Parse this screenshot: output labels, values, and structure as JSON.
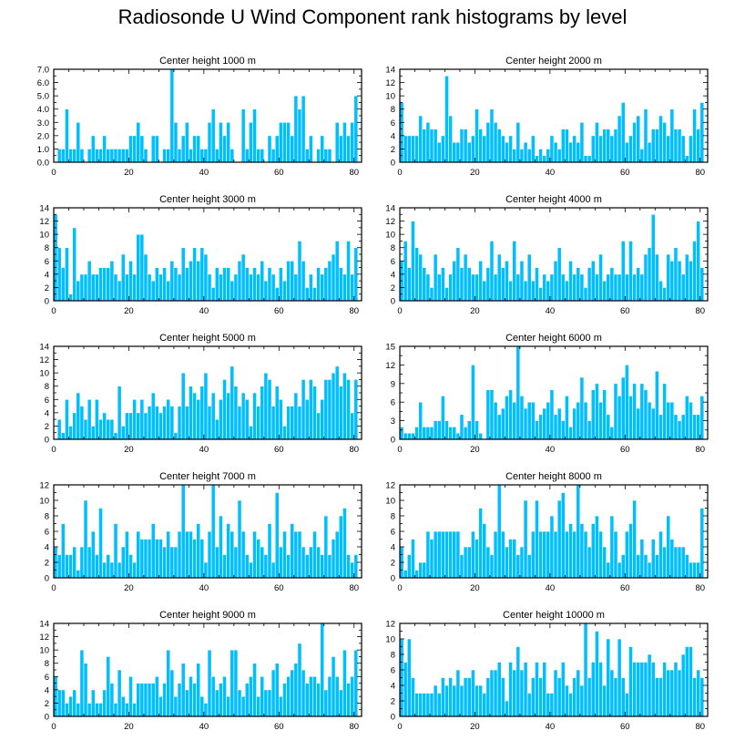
{
  "figure_title": "Radiosonde U Wind Component rank histograms by level",
  "colors": {
    "bar": "#00BFFF",
    "bar_edge": "#ffffff",
    "axis": "#000000"
  },
  "chart_data": [
    {
      "type": "bar",
      "title": "Center height 1000 m",
      "ylim": [
        0,
        7
      ],
      "yticks": [
        0,
        1,
        2,
        3,
        4,
        5,
        6,
        7
      ],
      "ytick_labels": [
        "0.0",
        "1.0",
        "2.0",
        "3.0",
        "4.0",
        "5.0",
        "6.0",
        "7.0"
      ],
      "xticks": [
        0,
        20,
        40,
        60,
        80
      ],
      "xtick_labels": [
        "0",
        "20",
        "40",
        "60",
        "80"
      ],
      "values": [
        0,
        1,
        1,
        4,
        1,
        1,
        3,
        1,
        0,
        1,
        2,
        1,
        1,
        2,
        1,
        1,
        1,
        1,
        1,
        1,
        2,
        2,
        3,
        2,
        1,
        0,
        2,
        2,
        0,
        1,
        1,
        7,
        3,
        1,
        2,
        3,
        1,
        2,
        2,
        1,
        1,
        3,
        4,
        1,
        3,
        2,
        3,
        1,
        0,
        0,
        4,
        1,
        3,
        4,
        1,
        1,
        0,
        2,
        1,
        2,
        3,
        3,
        3,
        2,
        5,
        4,
        5,
        1,
        2,
        0,
        1,
        2,
        1,
        1,
        0,
        3,
        2,
        3,
        2,
        3,
        5
      ]
    },
    {
      "type": "bar",
      "title": "Center height 2000 m",
      "ylim": [
        0,
        14
      ],
      "yticks": [
        0,
        2,
        4,
        6,
        8,
        10,
        12,
        14
      ],
      "ytick_labels": [
        "0",
        "2",
        "4",
        "6",
        "8",
        "10",
        "12",
        "14"
      ],
      "xticks": [
        0,
        20,
        40,
        60,
        80
      ],
      "xtick_labels": [
        "0",
        "20",
        "40",
        "60",
        "80"
      ],
      "values": [
        9,
        4,
        4,
        4,
        4,
        7,
        5,
        6,
        5,
        5,
        3,
        4,
        13,
        7,
        3,
        3,
        5,
        5,
        3,
        4,
        8,
        5,
        4,
        6,
        8,
        6,
        5,
        4,
        3,
        4,
        2,
        6,
        2,
        3,
        2,
        4,
        1,
        2,
        1,
        2,
        4,
        3,
        2,
        5,
        5,
        3,
        4,
        3,
        6,
        1,
        1,
        4,
        6,
        4,
        5,
        5,
        4,
        5,
        7,
        9,
        3,
        4,
        6,
        7,
        2,
        8,
        3,
        5,
        5,
        7,
        6,
        4,
        8,
        5,
        5,
        4,
        1,
        4,
        8,
        5,
        9
      ]
    },
    {
      "type": "bar",
      "title": "Center height 3000 m",
      "ylim": [
        0,
        14
      ],
      "yticks": [
        0,
        2,
        4,
        6,
        8,
        10,
        12,
        14
      ],
      "ytick_labels": [
        "0",
        "2",
        "4",
        "6",
        "8",
        "10",
        "12",
        "14"
      ],
      "xticks": [
        0,
        20,
        40,
        60,
        80
      ],
      "xtick_labels": [
        "0",
        "20",
        "40",
        "60",
        "80"
      ],
      "values": [
        13,
        8,
        5,
        8,
        1,
        11,
        3,
        4,
        4,
        6,
        4,
        4,
        5,
        5,
        5,
        6,
        4,
        3,
        7,
        4,
        6,
        4,
        10,
        10,
        7,
        4,
        3,
        5,
        4,
        5,
        3,
        6,
        5,
        4,
        8,
        5,
        6,
        8,
        6,
        8,
        7,
        4,
        2,
        5,
        4,
        5,
        5,
        3,
        4,
        6,
        7,
        5,
        4,
        5,
        4,
        6,
        3,
        5,
        4,
        2,
        5,
        3,
        6,
        6,
        4,
        9,
        6,
        2,
        4,
        2,
        5,
        4,
        5,
        6,
        7,
        9,
        5,
        4,
        9,
        4,
        8
      ]
    },
    {
      "type": "bar",
      "title": "Center height 4000 m",
      "ylim": [
        0,
        14
      ],
      "yticks": [
        0,
        2,
        4,
        6,
        8,
        10,
        12,
        14
      ],
      "ytick_labels": [
        "0",
        "2",
        "4",
        "6",
        "8",
        "10",
        "12",
        "14"
      ],
      "xticks": [
        0,
        20,
        40,
        60,
        80
      ],
      "xtick_labels": [
        "0",
        "20",
        "40",
        "60",
        "80"
      ],
      "values": [
        6,
        9,
        5,
        12,
        8,
        7,
        5,
        4,
        2,
        7,
        4,
        5,
        2,
        4,
        6,
        8,
        5,
        7,
        5,
        4,
        4,
        6,
        3,
        5,
        9,
        4,
        7,
        5,
        6,
        3,
        9,
        4,
        6,
        3,
        7,
        3,
        5,
        2,
        4,
        3,
        4,
        6,
        8,
        4,
        3,
        6,
        4,
        5,
        4,
        2,
        5,
        6,
        4,
        7,
        3,
        4,
        5,
        4,
        4,
        9,
        4,
        9,
        4,
        5,
        4,
        7,
        8,
        13,
        7,
        3,
        2,
        7,
        6,
        8,
        6,
        4,
        7,
        6,
        9,
        12,
        5
      ]
    },
    {
      "type": "bar",
      "title": "Center height 5000 m",
      "ylim": [
        0,
        14
      ],
      "yticks": [
        0,
        2,
        4,
        6,
        8,
        10,
        12,
        14
      ],
      "ytick_labels": [
        "0",
        "2",
        "4",
        "6",
        "8",
        "10",
        "12",
        "14"
      ],
      "xticks": [
        0,
        20,
        40,
        60,
        80
      ],
      "xtick_labels": [
        "0",
        "20",
        "40",
        "60",
        "80"
      ],
      "values": [
        0,
        3,
        1,
        6,
        2,
        4,
        7,
        5,
        3,
        6,
        2,
        6,
        3,
        4,
        3,
        3,
        1,
        8,
        2,
        4,
        4,
        6,
        4,
        6,
        4,
        5,
        7,
        5,
        4,
        5,
        6,
        5,
        1,
        5,
        10,
        5,
        8,
        7,
        6,
        8,
        10,
        5,
        7,
        3,
        6,
        9,
        7,
        11,
        8,
        5,
        7,
        6,
        2,
        7,
        5,
        8,
        10,
        9,
        5,
        8,
        6,
        2,
        5,
        5,
        7,
        5,
        9,
        6,
        9,
        8,
        4,
        6,
        9,
        9,
        10,
        11,
        8,
        10,
        9,
        4,
        9
      ]
    },
    {
      "type": "bar",
      "title": "Center height 6000 m",
      "ylim": [
        0,
        15
      ],
      "yticks": [
        0,
        3,
        6,
        9,
        12,
        15
      ],
      "ytick_labels": [
        "0",
        "3",
        "6",
        "9",
        "12",
        "15"
      ],
      "xticks": [
        0,
        20,
        40,
        60,
        80
      ],
      "xtick_labels": [
        "0",
        "20",
        "40",
        "60",
        "80"
      ],
      "values": [
        2,
        1,
        1,
        1,
        2,
        6,
        2,
        2,
        2,
        3,
        3,
        7,
        3,
        2,
        2,
        1,
        4,
        2,
        3,
        12,
        3,
        1,
        0,
        8,
        8,
        6,
        4,
        5,
        7,
        8,
        6,
        15,
        7,
        5,
        6,
        6,
        3,
        4,
        5,
        6,
        8,
        4,
        5,
        3,
        7,
        2,
        5,
        6,
        10,
        6,
        3,
        8,
        9,
        6,
        8,
        4,
        2,
        9,
        7,
        10,
        12,
        7,
        9,
        5,
        9,
        8,
        6,
        5,
        11,
        4,
        9,
        6,
        6,
        4,
        3,
        4,
        7,
        6,
        4,
        4,
        7
      ]
    },
    {
      "type": "bar",
      "title": "Center height 7000 m",
      "ylim": [
        0,
        12
      ],
      "yticks": [
        0,
        2,
        4,
        6,
        8,
        10,
        12
      ],
      "ytick_labels": [
        "0",
        "2",
        "4",
        "6",
        "8",
        "10",
        "12"
      ],
      "xticks": [
        0,
        20,
        40,
        60,
        80
      ],
      "xtick_labels": [
        "0",
        "20",
        "40",
        "60",
        "80"
      ],
      "values": [
        4,
        3,
        7,
        3,
        3,
        4,
        1,
        4,
        10,
        4,
        6,
        3,
        9,
        2,
        3,
        2,
        7,
        2,
        4,
        6,
        3,
        2,
        6,
        5,
        5,
        5,
        7,
        5,
        5,
        4,
        6,
        4,
        4,
        6,
        12,
        6,
        6,
        5,
        7,
        5,
        2,
        6,
        12,
        4,
        8,
        3,
        7,
        6,
        4,
        10,
        6,
        3,
        2,
        6,
        5,
        4,
        3,
        7,
        2,
        11,
        4,
        6,
        3,
        7,
        6,
        6,
        4,
        3,
        4,
        6,
        4,
        3,
        8,
        3,
        5,
        6,
        8,
        9,
        3,
        2,
        3
      ]
    },
    {
      "type": "bar",
      "title": "Center height 8000 m",
      "ylim": [
        0,
        12
      ],
      "yticks": [
        0,
        2,
        4,
        6,
        8,
        10,
        12
      ],
      "ytick_labels": [
        "0",
        "2",
        "4",
        "6",
        "8",
        "10",
        "12"
      ],
      "xticks": [
        0,
        20,
        40,
        60,
        80
      ],
      "xtick_labels": [
        "0",
        "20",
        "40",
        "60",
        "80"
      ],
      "values": [
        4,
        1,
        3,
        5,
        1,
        2,
        2,
        6,
        5,
        6,
        6,
        6,
        6,
        6,
        6,
        6,
        3,
        4,
        4,
        6,
        5,
        9,
        7,
        4,
        3,
        6,
        12,
        6,
        4,
        5,
        5,
        3,
        4,
        10,
        3,
        6,
        10,
        6,
        6,
        6,
        8,
        6,
        10,
        11,
        6,
        7,
        6,
        12,
        7,
        6,
        4,
        7,
        8,
        6,
        4,
        2,
        8,
        6,
        2,
        3,
        6,
        7,
        10,
        3,
        5,
        3,
        2,
        5,
        3,
        6,
        4,
        8,
        5,
        4,
        4,
        4,
        3,
        2,
        2,
        2,
        9
      ]
    },
    {
      "type": "bar",
      "title": "Center height 9000 m",
      "ylim": [
        0,
        14
      ],
      "yticks": [
        0,
        2,
        4,
        6,
        8,
        10,
        12,
        14
      ],
      "ytick_labels": [
        "0",
        "2",
        "4",
        "6",
        "8",
        "10",
        "12",
        "14"
      ],
      "xticks": [
        0,
        20,
        40,
        60,
        80
      ],
      "xtick_labels": [
        "0",
        "20",
        "40",
        "60",
        "80"
      ],
      "values": [
        6,
        4,
        4,
        2,
        3,
        4,
        2,
        10,
        8,
        2,
        4,
        2,
        2,
        4,
        9,
        5,
        2,
        7,
        3,
        2,
        6,
        2,
        5,
        5,
        5,
        5,
        5,
        6,
        3,
        5,
        10,
        7,
        3,
        5,
        8,
        4,
        6,
        5,
        8,
        3,
        2,
        10,
        6,
        4,
        5,
        6,
        3,
        10,
        10,
        4,
        3,
        5,
        6,
        8,
        3,
        6,
        4,
        4,
        7,
        8,
        3,
        5,
        6,
        7,
        8,
        11,
        7,
        5,
        6,
        6,
        5,
        14,
        4,
        6,
        9,
        6,
        4,
        10,
        5,
        6,
        10
      ]
    },
    {
      "type": "bar",
      "title": "Center height 10000 m",
      "ylim": [
        0,
        12
      ],
      "yticks": [
        0,
        2,
        4,
        6,
        8,
        10,
        12
      ],
      "ytick_labels": [
        "0",
        "2",
        "4",
        "6",
        "8",
        "10",
        "12"
      ],
      "xticks": [
        0,
        20,
        40,
        60,
        80
      ],
      "xtick_labels": [
        "0",
        "20",
        "40",
        "60",
        "80"
      ],
      "values": [
        10,
        7,
        10,
        5,
        3,
        3,
        3,
        3,
        3,
        4,
        3,
        5,
        4,
        5,
        4,
        6,
        4,
        5,
        5,
        6,
        4,
        4,
        3,
        5,
        6,
        6,
        7,
        5,
        2,
        7,
        6,
        9,
        6,
        7,
        3,
        5,
        7,
        5,
        7,
        3,
        3,
        6,
        5,
        7,
        4,
        3,
        5,
        6,
        4,
        12,
        5,
        7,
        11,
        7,
        4,
        10,
        6,
        5,
        10,
        5,
        3,
        9,
        7,
        7,
        7,
        7,
        8,
        7,
        5,
        5,
        7,
        6,
        6,
        7,
        6,
        8,
        9,
        9,
        5,
        6,
        5
      ]
    }
  ]
}
